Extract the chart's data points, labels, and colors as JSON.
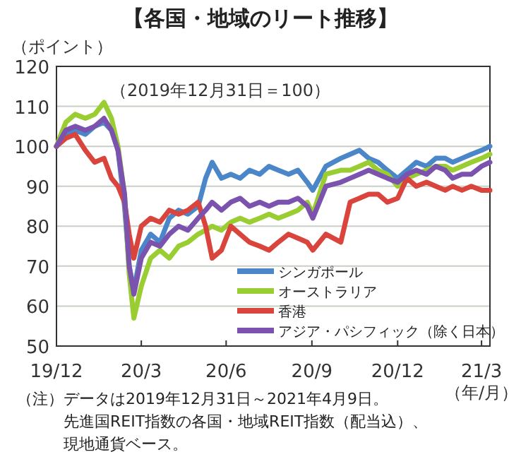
{
  "chart_data": {
    "type": "line",
    "title": "【各国・地域のリート推移】",
    "ylabel": "（ポイント）",
    "xlabel": "（年/月）",
    "annotations": [
      "（2019年12月31日＝100）",
      "（注）データは2019年12月31日～2021年4月9日。",
      "先進国REIT指数の各国・地域REIT指数（配当込）、",
      "現地通貨ベース。"
    ],
    "xlim": [
      "2019-12-31",
      "2021-04-09"
    ],
    "xticks": [
      {
        "value": "2019-12-31",
        "label": "19/12"
      },
      {
        "value": "2020-03-31",
        "label": "20/3"
      },
      {
        "value": "2020-06-30",
        "label": "20/6"
      },
      {
        "value": "2020-09-30",
        "label": "20/9"
      },
      {
        "value": "2020-12-31",
        "label": "20/12"
      },
      {
        "value": "2021-03-31",
        "label": "21/3"
      }
    ],
    "ylim": [
      50,
      120
    ],
    "yticks": [
      50,
      60,
      70,
      80,
      90,
      100,
      110,
      120
    ],
    "grid": "y",
    "legend": "bottom right",
    "line_style": "solid",
    "marker": "none",
    "x": [
      "2019-12-31",
      "2020-01-10",
      "2020-01-20",
      "2020-01-31",
      "2020-02-10",
      "2020-02-20",
      "2020-02-28",
      "2020-03-06",
      "2020-03-13",
      "2020-03-18",
      "2020-03-23",
      "2020-03-31",
      "2020-04-10",
      "2020-04-20",
      "2020-04-30",
      "2020-05-10",
      "2020-05-20",
      "2020-05-31",
      "2020-06-08",
      "2020-06-15",
      "2020-06-25",
      "2020-07-05",
      "2020-07-15",
      "2020-07-25",
      "2020-08-05",
      "2020-08-15",
      "2020-08-25",
      "2020-09-05",
      "2020-09-15",
      "2020-09-25",
      "2020-10-01",
      "2020-10-15",
      "2020-10-31",
      "2020-11-10",
      "2020-11-20",
      "2020-11-30",
      "2020-12-10",
      "2020-12-20",
      "2020-12-31",
      "2021-01-10",
      "2021-01-20",
      "2021-01-31",
      "2021-02-10",
      "2021-02-20",
      "2021-02-28",
      "2021-03-10",
      "2021-03-20",
      "2021-03-31",
      "2021-04-09"
    ],
    "series": [
      {
        "name": "シンガポール",
        "color": "#4a86c8",
        "values": [
          100,
          103,
          104,
          103,
          105,
          106,
          104,
          99,
          85,
          70,
          64,
          74,
          78,
          76,
          82,
          84,
          83,
          85,
          92,
          96,
          92,
          93,
          92,
          94,
          93,
          95,
          94,
          93,
          94,
          91,
          89,
          95,
          97,
          98,
          99,
          97,
          96,
          94,
          92,
          94,
          96,
          95,
          97,
          97,
          96,
          97,
          98,
          99,
          100
        ]
      },
      {
        "name": "オーストラリア",
        "color": "#9acd32",
        "values": [
          100,
          106,
          108,
          107,
          108,
          111,
          107,
          100,
          88,
          68,
          57,
          65,
          72,
          74,
          72,
          75,
          76,
          78,
          79,
          80,
          79,
          81,
          82,
          81,
          82,
          83,
          82,
          83,
          84,
          86,
          83,
          93,
          94,
          94,
          95,
          96,
          94,
          93,
          90,
          92,
          93,
          94,
          95,
          95,
          94,
          95,
          96,
          97,
          98
        ]
      },
      {
        "name": "香港",
        "color": "#d9443d",
        "values": [
          100,
          102,
          103,
          99,
          96,
          97,
          92,
          90,
          86,
          78,
          72,
          80,
          82,
          81,
          84,
          83,
          84,
          86,
          80,
          72,
          74,
          80,
          78,
          76,
          75,
          74,
          76,
          78,
          77,
          76,
          74,
          78,
          76,
          86,
          87,
          88,
          88,
          86,
          87,
          92,
          90,
          91,
          90,
          89,
          90,
          89,
          90,
          89,
          89
        ]
      },
      {
        "name": "アジア・パシフィック（除く日本）",
        "color": "#7b52ae",
        "values": [
          100,
          104,
          105,
          104,
          105,
          107,
          104,
          99,
          88,
          70,
          63,
          72,
          76,
          75,
          78,
          80,
          79,
          82,
          84,
          86,
          84,
          86,
          87,
          85,
          86,
          85,
          86,
          86,
          87,
          85,
          82,
          90,
          91,
          92,
          93,
          94,
          93,
          92,
          91,
          93,
          94,
          93,
          95,
          94,
          92,
          93,
          93,
          95,
          96
        ]
      }
    ]
  }
}
